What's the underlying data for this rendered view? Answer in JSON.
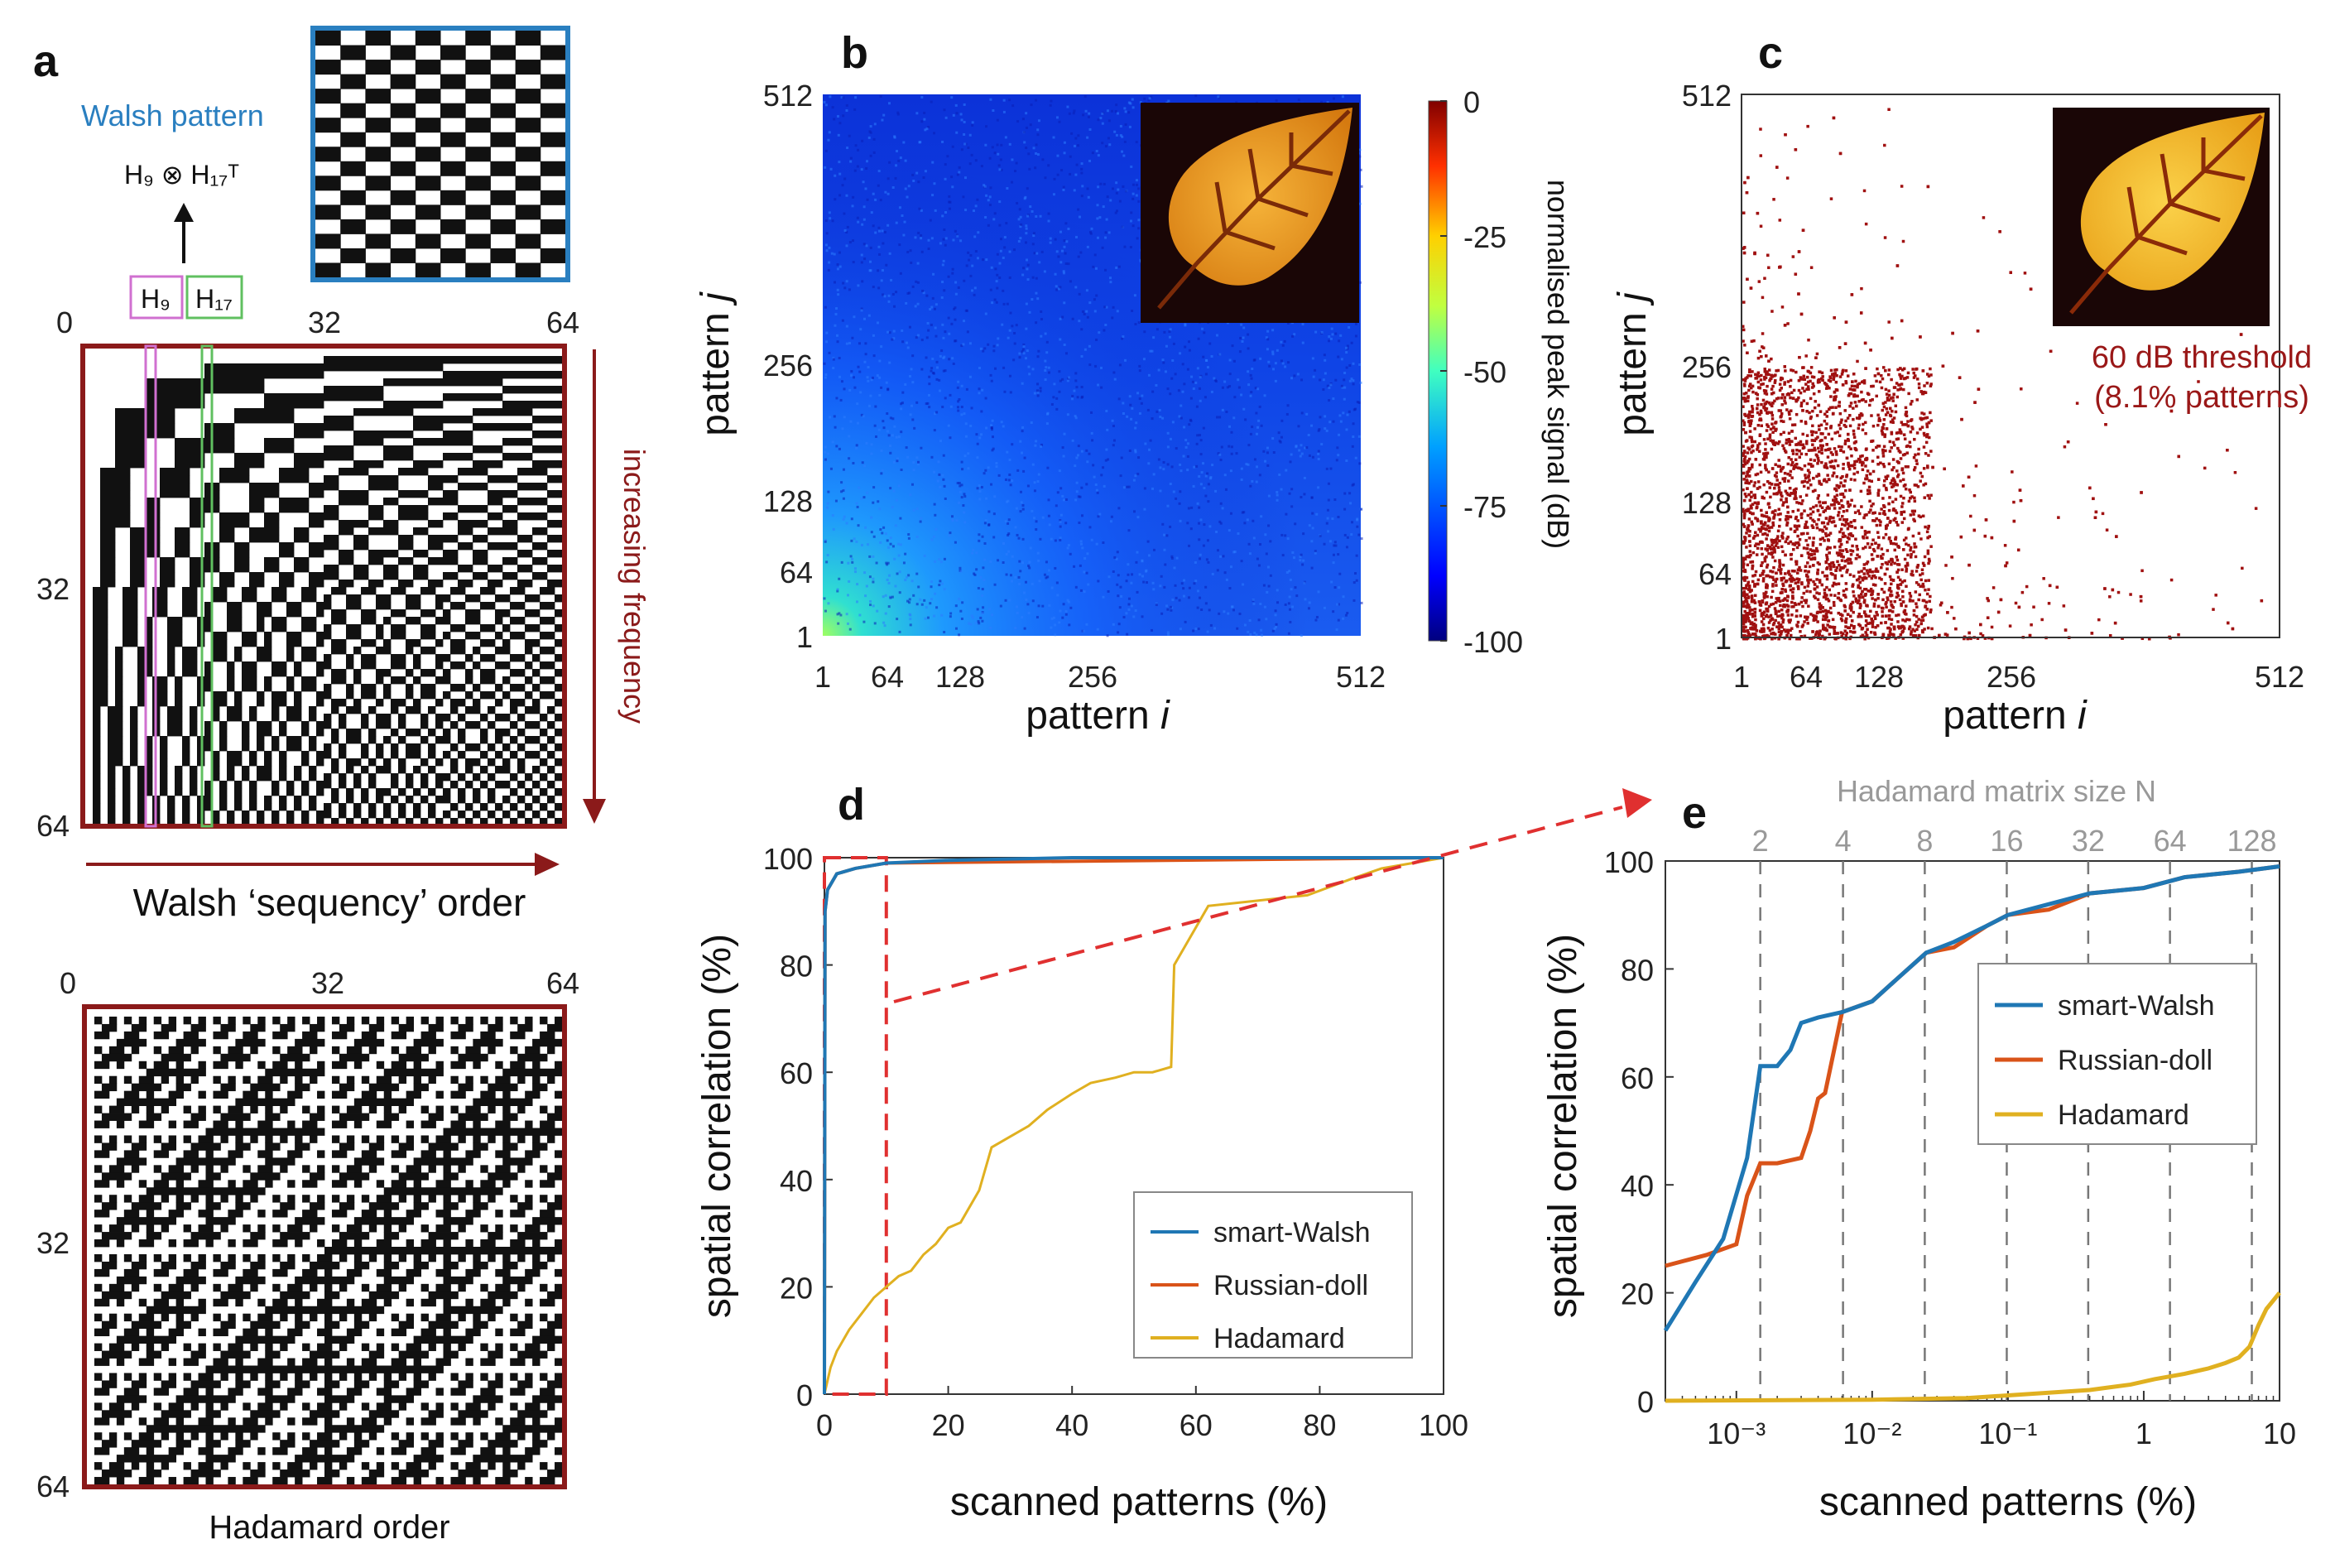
{
  "panels": {
    "a": {
      "label": "a",
      "walsh_caption": "Walsh pattern",
      "kron_text": "H₉ ⊗ H₁₇ᵀ",
      "h9": "H₉",
      "h17": "H₁₇",
      "axis_top": [
        "0",
        "32",
        "64"
      ],
      "axis_left": [
        "32",
        "64"
      ],
      "increasing": "increasing frequency",
      "walsh_order": "Walsh ‘sequency’ order",
      "hadamard_order": "Hadamard order",
      "colors": {
        "frame": "#8b1a1a",
        "walsh_frame": "#2a7fc0",
        "h9": "#d070d0",
        "h17": "#60c060"
      }
    },
    "b": {
      "label": "b",
      "inset_desc": "leaf image"
    },
    "c": {
      "label": "c",
      "threshold_line1": "60 dB threshold",
      "threshold_line2": "(8.1% patterns)"
    },
    "d": {
      "label": "d"
    },
    "e": {
      "label": "e"
    }
  },
  "chart_data": [
    {
      "id": "b",
      "type": "heatmap",
      "xlabel": "pattern i",
      "ylabel": "pattern j",
      "xticks": [
        "1",
        "64",
        "128",
        "256",
        "512"
      ],
      "yticks": [
        "1",
        "64",
        "128",
        "256",
        "512"
      ],
      "colorbar": {
        "label": "normalised peak signal (dB)",
        "ticks": [
          "0",
          "-25",
          "-50",
          "-75",
          "-100"
        ],
        "range": [
          -100,
          0
        ]
      },
      "colormap": "jet"
    },
    {
      "id": "c",
      "type": "scatter",
      "xlabel": "pattern i",
      "ylabel": "pattern j",
      "xticks": [
        "1",
        "64",
        "128",
        "256",
        "512"
      ],
      "yticks": [
        "1",
        "64",
        "128",
        "256",
        "512"
      ],
      "color": "#a01010"
    },
    {
      "id": "d",
      "type": "line",
      "xlabel": "scanned patterns (%)",
      "ylabel": "spatial correlation (%)",
      "xlim": [
        0,
        100
      ],
      "ylim": [
        0,
        100
      ],
      "xticks": [
        "0",
        "20",
        "40",
        "60",
        "80",
        "100"
      ],
      "yticks": [
        "0",
        "20",
        "40",
        "60",
        "80",
        "100"
      ],
      "legend_position": "bottom-right",
      "series": [
        {
          "name": "smart-Walsh",
          "color": "#1f77b4",
          "x": [
            0,
            0.1,
            0.5,
            1,
            2,
            5,
            10,
            20,
            40,
            100
          ],
          "y": [
            0,
            90,
            94,
            95,
            97,
            98,
            99,
            99.5,
            100,
            100
          ]
        },
        {
          "name": "Russian-doll",
          "color": "#d95319",
          "x": [
            0,
            0.1,
            0.5,
            1,
            2,
            5,
            10,
            100
          ],
          "y": [
            0,
            90,
            94,
            95,
            97,
            98,
            99,
            100
          ]
        },
        {
          "name": "Hadamard",
          "color": "#e0b020",
          "x": [
            0,
            1,
            2,
            4,
            6,
            8,
            10,
            12,
            14,
            16,
            18,
            20,
            22,
            25,
            27,
            30,
            33,
            36,
            40,
            43,
            47,
            50,
            53,
            56,
            56.5,
            62,
            70,
            78,
            85,
            90,
            95,
            100
          ],
          "y": [
            0,
            5,
            8,
            12,
            15,
            18,
            20,
            22,
            23,
            26,
            28,
            31,
            32,
            38,
            46,
            48,
            50,
            53,
            56,
            58,
            59,
            60,
            60,
            61,
            80,
            91,
            92,
            93,
            96,
            98,
            99,
            100
          ]
        }
      ],
      "zoom_box": {
        "x": [
          0,
          10
        ],
        "y": [
          0,
          100
        ],
        "color": "#e03030"
      }
    },
    {
      "id": "e",
      "type": "line",
      "xlabel": "scanned patterns (%)",
      "ylabel": "spatial correlation (%)",
      "x_scale": "log",
      "xlim": [
        0.0003,
        10
      ],
      "ylim": [
        0,
        100
      ],
      "xticks": [
        "10⁻³",
        "10⁻²",
        "10⁻¹",
        "1",
        "10"
      ],
      "yticks": [
        "0",
        "20",
        "40",
        "60",
        "80",
        "100"
      ],
      "top_axis_label": "Hadamard matrix size N",
      "top_ticks": [
        "2",
        "4",
        "8",
        "16",
        "32",
        "64",
        "128"
      ],
      "top_tick_x": [
        0.0015,
        0.0061,
        0.0244,
        0.098,
        0.39,
        1.56,
        6.25
      ],
      "legend_position": "top-right",
      "series": [
        {
          "name": "smart-Walsh",
          "color": "#1f77b4",
          "x": [
            0.0003,
            0.0005,
            0.0008,
            0.0012,
            0.0015,
            0.002,
            0.0025,
            0.003,
            0.004,
            0.006,
            0.01,
            0.015,
            0.025,
            0.04,
            0.07,
            0.1,
            0.2,
            0.4,
            1,
            2,
            5,
            10
          ],
          "y": [
            13,
            22,
            30,
            45,
            62,
            62,
            65,
            70,
            71,
            72,
            74,
            78,
            83,
            85,
            88,
            90,
            92,
            94,
            95,
            97,
            98,
            99
          ]
        },
        {
          "name": "Russian-doll",
          "color": "#d95319",
          "x": [
            0.0003,
            0.0006,
            0.001,
            0.0012,
            0.0015,
            0.002,
            0.003,
            0.0035,
            0.004,
            0.0045,
            0.006,
            0.01,
            0.015,
            0.025,
            0.04,
            0.07,
            0.1,
            0.2,
            0.4,
            1,
            2,
            5,
            10
          ],
          "y": [
            25,
            27,
            29,
            38,
            44,
            44,
            45,
            50,
            56,
            57,
            72,
            74,
            78,
            83,
            84,
            88,
            90,
            91,
            94,
            95,
            97,
            98,
            99
          ]
        },
        {
          "name": "Hadamard",
          "color": "#e0b020",
          "x": [
            0.0003,
            0.01,
            0.05,
            0.1,
            0.2,
            0.4,
            0.8,
            1.2,
            2,
            3,
            4,
            5,
            6,
            7,
            8,
            10
          ],
          "y": [
            0,
            0.2,
            0.5,
            1,
            1.5,
            2,
            3,
            4,
            5,
            6,
            7,
            8,
            10,
            14,
            17,
            20
          ]
        }
      ]
    }
  ]
}
